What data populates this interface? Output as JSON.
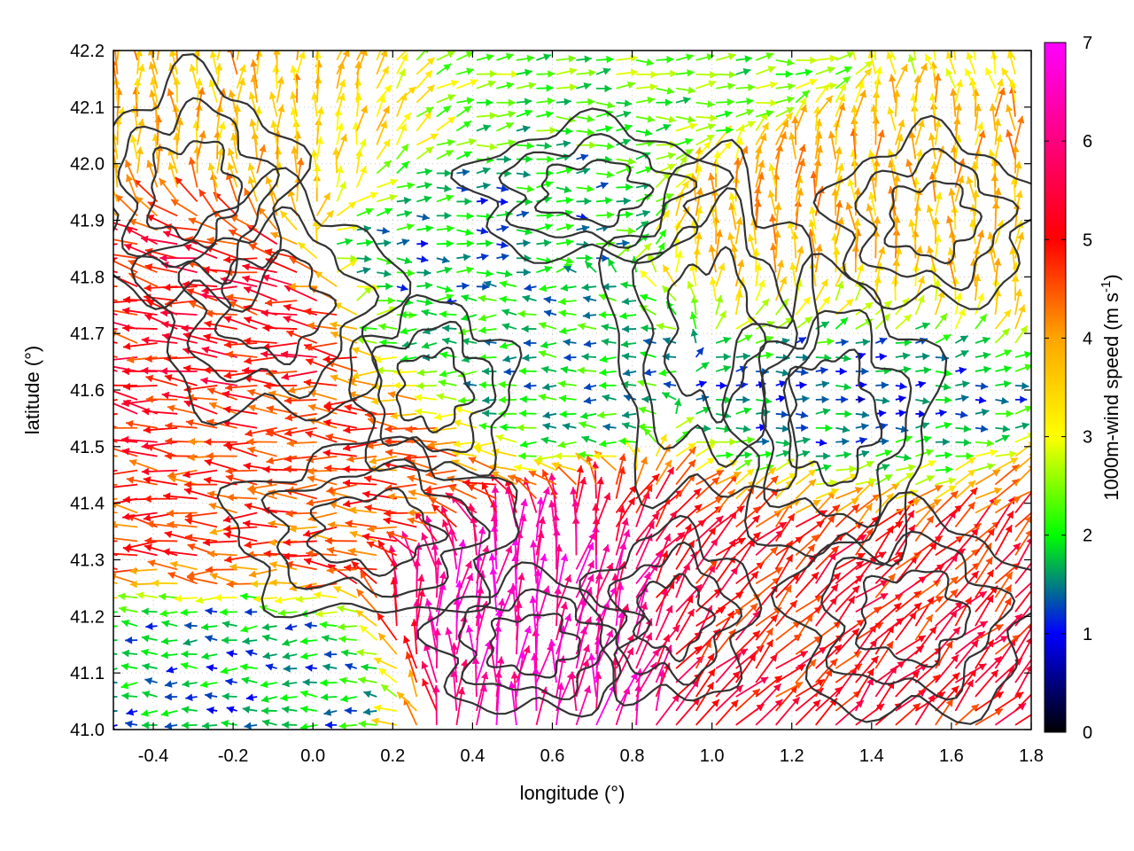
{
  "chart_data": {
    "type": "vector-field",
    "title": "",
    "xlabel": "longitude (°)",
    "ylabel": "latitude (°)",
    "xlim": [
      -0.5,
      1.8
    ],
    "ylim": [
      41.0,
      42.2
    ],
    "xticks": [
      "-0.4",
      "-0.2",
      "0.0",
      "0.2",
      "0.4",
      "0.6",
      "0.8",
      "1.0",
      "1.2",
      "1.4",
      "1.6",
      "1.8"
    ],
    "xtick_values": [
      -0.4,
      -0.2,
      0.0,
      0.2,
      0.4,
      0.6,
      0.8,
      1.0,
      1.2,
      1.4,
      1.6,
      1.8
    ],
    "yticks": [
      "41.0",
      "41.1",
      "41.2",
      "41.3",
      "41.4",
      "41.5",
      "41.6",
      "41.7",
      "41.8",
      "41.9",
      "42.0",
      "42.1",
      "42.2"
    ],
    "ytick_values": [
      41.0,
      41.1,
      41.2,
      41.3,
      41.4,
      41.5,
      41.6,
      41.7,
      41.8,
      41.9,
      42.0,
      42.1,
      42.2
    ],
    "colorbar": {
      "label_main": "1000m-wind speed (m s",
      "label_sup": "-1",
      "label_end": ")",
      "ticks": [
        "0",
        "1",
        "2",
        "3",
        "4",
        "5",
        "6",
        "7"
      ],
      "tick_values": [
        0,
        1,
        2,
        3,
        4,
        5,
        6,
        7
      ],
      "range": [
        0,
        7
      ],
      "colormap": [
        "#000000",
        "#0000ff",
        "#00ff00",
        "#ffff00",
        "#ffa500",
        "#ff0000",
        "#ff00ff"
      ]
    },
    "grid": true,
    "contour_color": "#333333",
    "wind_regions": [
      {
        "lon": [
          -0.5,
          -0.1
        ],
        "lat": [
          41.45,
          41.8
        ],
        "speed": 5.0,
        "dir": [
          -1.0,
          0.15
        ]
      },
      {
        "lon": [
          -0.5,
          0.3
        ],
        "lat": [
          41.35,
          41.55
        ],
        "speed": 4.5,
        "dir": [
          -1.0,
          0.05
        ]
      },
      {
        "lon": [
          -0.45,
          0.1
        ],
        "lat": [
          41.0,
          41.15
        ],
        "speed": 1.5,
        "dir": [
          -1.0,
          0.0
        ]
      },
      {
        "lon": [
          0.35,
          0.8
        ],
        "lat": [
          41.0,
          41.3
        ],
        "speed": 6.5,
        "dir": [
          0.1,
          1.0
        ]
      },
      {
        "lon": [
          0.9,
          1.8
        ],
        "lat": [
          41.0,
          41.4
        ],
        "speed": 5.0,
        "dir": [
          0.7,
          0.7
        ]
      },
      {
        "lon": [
          1.1,
          1.6
        ],
        "lat": [
          41.45,
          41.7
        ],
        "speed": 1.2,
        "dir": [
          1.0,
          0.0
        ]
      },
      {
        "lon": [
          0.25,
          0.75
        ],
        "lat": [
          41.8,
          42.05
        ],
        "speed": 1.6,
        "dir": [
          1.0,
          0.0
        ]
      },
      {
        "lon": [
          0.4,
          0.8
        ],
        "lat": [
          41.55,
          41.8
        ],
        "speed": 1.8,
        "dir": [
          -1.0,
          0.0
        ]
      },
      {
        "lon": [
          -0.5,
          0.3
        ],
        "lat": [
          42.0,
          42.2
        ],
        "speed": 3.8,
        "dir": [
          0.0,
          1.0
        ]
      },
      {
        "lon": [
          0.2,
          1.0
        ],
        "lat": [
          42.05,
          42.2
        ],
        "speed": 2.3,
        "dir": [
          1.0,
          0.05
        ]
      },
      {
        "lon": [
          1.0,
          1.8
        ],
        "lat": [
          41.75,
          42.0
        ],
        "speed": 3.8,
        "dir": [
          0.0,
          1.0
        ]
      }
    ]
  }
}
